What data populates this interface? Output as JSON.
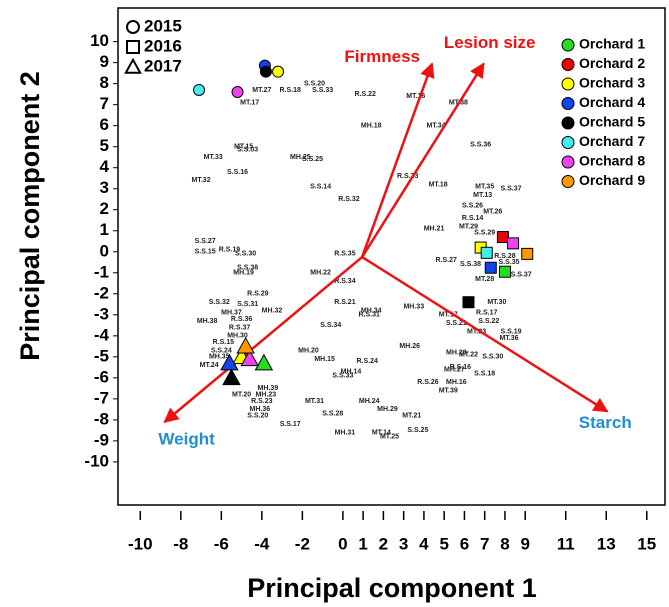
{
  "chart_data": {
    "type": "biplot",
    "x_label": "Principal component 1",
    "y_label": "Principal component 2",
    "xlim": [
      -11.1,
      15.9
    ],
    "ylim": [
      -12.05,
      11.6
    ],
    "xticks": [
      -10,
      -8,
      -6,
      -4,
      -2,
      0,
      1,
      2,
      3,
      4,
      5,
      6,
      7,
      8,
      9,
      11,
      13,
      15
    ],
    "yticks": [
      10,
      9,
      8,
      7,
      6,
      5,
      4,
      3,
      2,
      1,
      0,
      -1,
      -2,
      -3,
      -4,
      -5,
      -6,
      -7,
      -8,
      -9,
      -10
    ],
    "shape_legend": [
      {
        "label": "2015",
        "shape": "circle"
      },
      {
        "label": "2016",
        "shape": "square"
      },
      {
        "label": "2017",
        "shape": "triangle"
      }
    ],
    "series": [
      {
        "name": "Orchard 1",
        "color": "#22dd22",
        "x": [
          8.0,
          -3.9
        ],
        "y": [
          -0.95,
          -5.3
        ],
        "shapes": [
          "square",
          "triangle"
        ]
      },
      {
        "name": "Orchard 2",
        "color": "#ee0000",
        "x": [
          7.9
        ],
        "y": [
          0.7
        ],
        "shapes": [
          "square"
        ]
      },
      {
        "name": "Orchard 3",
        "color": "#ffff00",
        "x": [
          -3.2,
          6.8,
          -5.0
        ],
        "y": [
          8.57,
          0.2,
          -5.0
        ],
        "shapes": [
          "circle",
          "square",
          "triangle"
        ]
      },
      {
        "name": "Orchard 4",
        "color": "#1144ee",
        "x": [
          -3.85,
          7.3,
          -5.6
        ],
        "y": [
          8.86,
          -0.76,
          -5.3
        ],
        "shapes": [
          "circle",
          "square",
          "triangle"
        ]
      },
      {
        "name": "Orchard 5",
        "color": "#000000",
        "x": [
          -3.8,
          6.2,
          -5.5
        ],
        "y": [
          8.57,
          -2.4,
          -6.0
        ],
        "shapes": [
          "circle",
          "square",
          "triangle"
        ]
      },
      {
        "name": "Orchard 7",
        "color": "#44eeee",
        "x": [
          -7.1,
          7.1
        ],
        "y": [
          7.7,
          -0.05
        ],
        "shapes": [
          "circle",
          "square"
        ]
      },
      {
        "name": "Orchard 8",
        "color": "#ee44ee",
        "x": [
          -5.2,
          8.4,
          -4.6
        ],
        "y": [
          7.6,
          0.4,
          -5.1
        ],
        "shapes": [
          "circle",
          "square",
          "triangle"
        ]
      },
      {
        "name": "Orchard 9",
        "color": "#ff9900",
        "x": [
          9.1,
          -4.8
        ],
        "y": [
          -0.1,
          -4.5
        ],
        "shapes": [
          "square",
          "triangle"
        ]
      }
    ],
    "arrow_origin": [
      0.95,
      -0.25
    ],
    "arrows": [
      {
        "label": "Firmness",
        "x": 4.4,
        "y": 8.95,
        "color": "#ee1111"
      },
      {
        "label": "Lesion size",
        "x": 6.95,
        "y": 8.95,
        "color": "#ee1111"
      },
      {
        "label": "Starch",
        "x": 13.05,
        "y": -7.6,
        "color": "#1e8fd0"
      },
      {
        "label": "Weight",
        "x": -8.8,
        "y": -8.1,
        "color": "#1e8fd0"
      }
    ],
    "point_labels": [
      {
        "text": "MT.17",
        "x": -4.6,
        "y": 7.1
      },
      {
        "text": "MT.27",
        "x": -4.0,
        "y": 7.7
      },
      {
        "text": "R.S.18",
        "x": -2.6,
        "y": 7.7
      },
      {
        "text": "S.S.20",
        "x": -1.4,
        "y": 8.0
      },
      {
        "text": "S.S.33",
        "x": -1.0,
        "y": 7.7
      },
      {
        "text": "R.S.22",
        "x": 1.1,
        "y": 7.5
      },
      {
        "text": "MT.16",
        "x": 3.6,
        "y": 7.4
      },
      {
        "text": "MT.38",
        "x": 5.7,
        "y": 7.1
      },
      {
        "text": "MH.18",
        "x": 1.4,
        "y": 6.0
      },
      {
        "text": "MT.34",
        "x": 4.6,
        "y": 6.0
      },
      {
        "text": "S.S.36",
        "x": 6.8,
        "y": 5.1
      },
      {
        "text": "MT.15",
        "x": -4.9,
        "y": 5.0
      },
      {
        "text": "S.S.03",
        "x": -4.7,
        "y": 4.85
      },
      {
        "text": "MT.33",
        "x": -6.4,
        "y": 4.5
      },
      {
        "text": "MH.25",
        "x": -2.1,
        "y": 4.5
      },
      {
        "text": "S.S.25",
        "x": -1.5,
        "y": 4.4
      },
      {
        "text": "S.S.16",
        "x": -5.2,
        "y": 3.8
      },
      {
        "text": "MT.32",
        "x": -7.0,
        "y": 3.4
      },
      {
        "text": "S.S.14",
        "x": -1.1,
        "y": 3.1
      },
      {
        "text": "R.S.33",
        "x": 3.2,
        "y": 3.6
      },
      {
        "text": "MT.18",
        "x": 4.7,
        "y": 3.2
      },
      {
        "text": "MT.35",
        "x": 7.0,
        "y": 3.1
      },
      {
        "text": "MT.13",
        "x": 6.9,
        "y": 2.7
      },
      {
        "text": "S.S.37",
        "x": 8.3,
        "y": 3.0
      },
      {
        "text": "S.S.26",
        "x": 6.4,
        "y": 2.2
      },
      {
        "text": "MT.26",
        "x": 7.4,
        "y": 1.9
      },
      {
        "text": "R.S.14",
        "x": 6.4,
        "y": 1.6
      },
      {
        "text": "MT.29",
        "x": 6.2,
        "y": 1.2
      },
      {
        "text": "S.S.29",
        "x": 7.0,
        "y": 0.9
      },
      {
        "text": "R.S.32",
        "x": 0.3,
        "y": 2.5
      },
      {
        "text": "MH.21",
        "x": 4.5,
        "y": 1.1
      },
      {
        "text": "S.S.27",
        "x": -6.8,
        "y": 0.5
      },
      {
        "text": "S.S.15",
        "x": -6.8,
        "y": 0.0
      },
      {
        "text": "R.S.19",
        "x": -5.6,
        "y": 0.1
      },
      {
        "text": "S.S.30",
        "x": -4.8,
        "y": -0.1
      },
      {
        "text": "S.S.38",
        "x": -4.7,
        "y": -0.75
      },
      {
        "text": "MH.19",
        "x": -4.9,
        "y": -1.0
      },
      {
        "text": "R.S.35",
        "x": 0.1,
        "y": -0.1
      },
      {
        "text": "MH.22",
        "x": -1.1,
        "y": -1.0
      },
      {
        "text": "R.S.34",
        "x": 0.1,
        "y": -1.4
      },
      {
        "text": "R.S.27",
        "x": 5.1,
        "y": -0.4
      },
      {
        "text": "S.S.38",
        "x": 6.3,
        "y": -0.6
      },
      {
        "text": "R.S.28",
        "x": 8.0,
        "y": -0.2
      },
      {
        "text": "S.S.35",
        "x": 8.2,
        "y": -0.5
      },
      {
        "text": "MT.28",
        "x": 7.0,
        "y": -1.3
      },
      {
        "text": "S.S.37",
        "x": 8.8,
        "y": -1.1
      },
      {
        "text": "R.S.29",
        "x": -4.2,
        "y": -2.0
      },
      {
        "text": "S.S.32",
        "x": -6.1,
        "y": -2.4
      },
      {
        "text": "S.S.31",
        "x": -4.7,
        "y": -2.5
      },
      {
        "text": "MH.37",
        "x": -5.5,
        "y": -2.9
      },
      {
        "text": "MH.32",
        "x": -3.5,
        "y": -2.8
      },
      {
        "text": "R.S.36",
        "x": -5.0,
        "y": -3.2
      },
      {
        "text": "MH.38",
        "x": -6.7,
        "y": -3.3
      },
      {
        "text": "R.S.37",
        "x": -5.1,
        "y": -3.6
      },
      {
        "text": "MH.30",
        "x": -5.2,
        "y": -4.0
      },
      {
        "text": "R.S.15",
        "x": -5.9,
        "y": -4.3
      },
      {
        "text": "S.S.24",
        "x": -6.0,
        "y": -4.7
      },
      {
        "text": "MH.35",
        "x": -6.1,
        "y": -5.0
      },
      {
        "text": "MT.24",
        "x": -6.6,
        "y": -5.4
      },
      {
        "text": "R.S.21",
        "x": 0.1,
        "y": -2.4
      },
      {
        "text": "MH.34",
        "x": 1.4,
        "y": -2.8
      },
      {
        "text": "R.S.31",
        "x": 1.3,
        "y": -3.0
      },
      {
        "text": "S.S.34",
        "x": -0.6,
        "y": -3.5
      },
      {
        "text": "MH.33",
        "x": 3.5,
        "y": -2.6
      },
      {
        "text": "MT.17",
        "x": 5.2,
        "y": -3.0
      },
      {
        "text": "R.S.17",
        "x": 7.1,
        "y": -2.9
      },
      {
        "text": "MT.30",
        "x": 7.6,
        "y": -2.4
      },
      {
        "text": "S.S.21",
        "x": 5.6,
        "y": -3.4
      },
      {
        "text": "S.S.22",
        "x": 7.2,
        "y": -3.3
      },
      {
        "text": "MT.23",
        "x": 6.6,
        "y": -3.8
      },
      {
        "text": "S.S.19",
        "x": 8.3,
        "y": -3.8
      },
      {
        "text": "MT.36",
        "x": 8.2,
        "y": -4.1
      },
      {
        "text": "MH.20",
        "x": -1.7,
        "y": -4.7
      },
      {
        "text": "MH.26",
        "x": 3.3,
        "y": -4.5
      },
      {
        "text": "MH.28",
        "x": 5.6,
        "y": -4.8
      },
      {
        "text": "MT.22",
        "x": 6.2,
        "y": -4.9
      },
      {
        "text": "S.S.30",
        "x": 7.4,
        "y": -5.0
      },
      {
        "text": "MH.15",
        "x": -0.9,
        "y": -5.1
      },
      {
        "text": "R.S.24",
        "x": 1.2,
        "y": -5.2
      },
      {
        "text": "MH.14",
        "x": 0.4,
        "y": -5.7
      },
      {
        "text": "S.S.33",
        "x": 0.0,
        "y": -5.9
      },
      {
        "text": "R.S.16",
        "x": 5.8,
        "y": -5.5
      },
      {
        "text": "MH.27",
        "x": 5.5,
        "y": -5.6
      },
      {
        "text": "S.S.18",
        "x": 7.0,
        "y": -5.8
      },
      {
        "text": "R.S.26",
        "x": 4.2,
        "y": -6.2
      },
      {
        "text": "MH.16",
        "x": 5.6,
        "y": -6.2
      },
      {
        "text": "MT.39",
        "x": 5.2,
        "y": -6.6
      },
      {
        "text": "MH.39",
        "x": -3.7,
        "y": -6.5
      },
      {
        "text": "MT.20",
        "x": -5.0,
        "y": -6.8
      },
      {
        "text": "MH.23",
        "x": -3.8,
        "y": -6.8
      },
      {
        "text": "R.S.23",
        "x": -4.0,
        "y": -7.1
      },
      {
        "text": "MT.31",
        "x": -1.4,
        "y": -7.1
      },
      {
        "text": "MH.24",
        "x": 1.3,
        "y": -7.1
      },
      {
        "text": "MH.36",
        "x": -4.1,
        "y": -7.5
      },
      {
        "text": "S.S.20",
        "x": -4.2,
        "y": -7.8
      },
      {
        "text": "S.S.28",
        "x": -0.5,
        "y": -7.7
      },
      {
        "text": "MH.29",
        "x": 2.2,
        "y": -7.5
      },
      {
        "text": "MT.21",
        "x": 3.4,
        "y": -7.8
      },
      {
        "text": "S.S.17",
        "x": -2.6,
        "y": -8.2
      },
      {
        "text": "MH.31",
        "x": 0.1,
        "y": -8.6
      },
      {
        "text": "MT.14",
        "x": 1.9,
        "y": -8.6
      },
      {
        "text": "MT.25",
        "x": 2.3,
        "y": -8.8
      },
      {
        "text": "S.S.25",
        "x": 3.7,
        "y": -8.5
      }
    ]
  }
}
